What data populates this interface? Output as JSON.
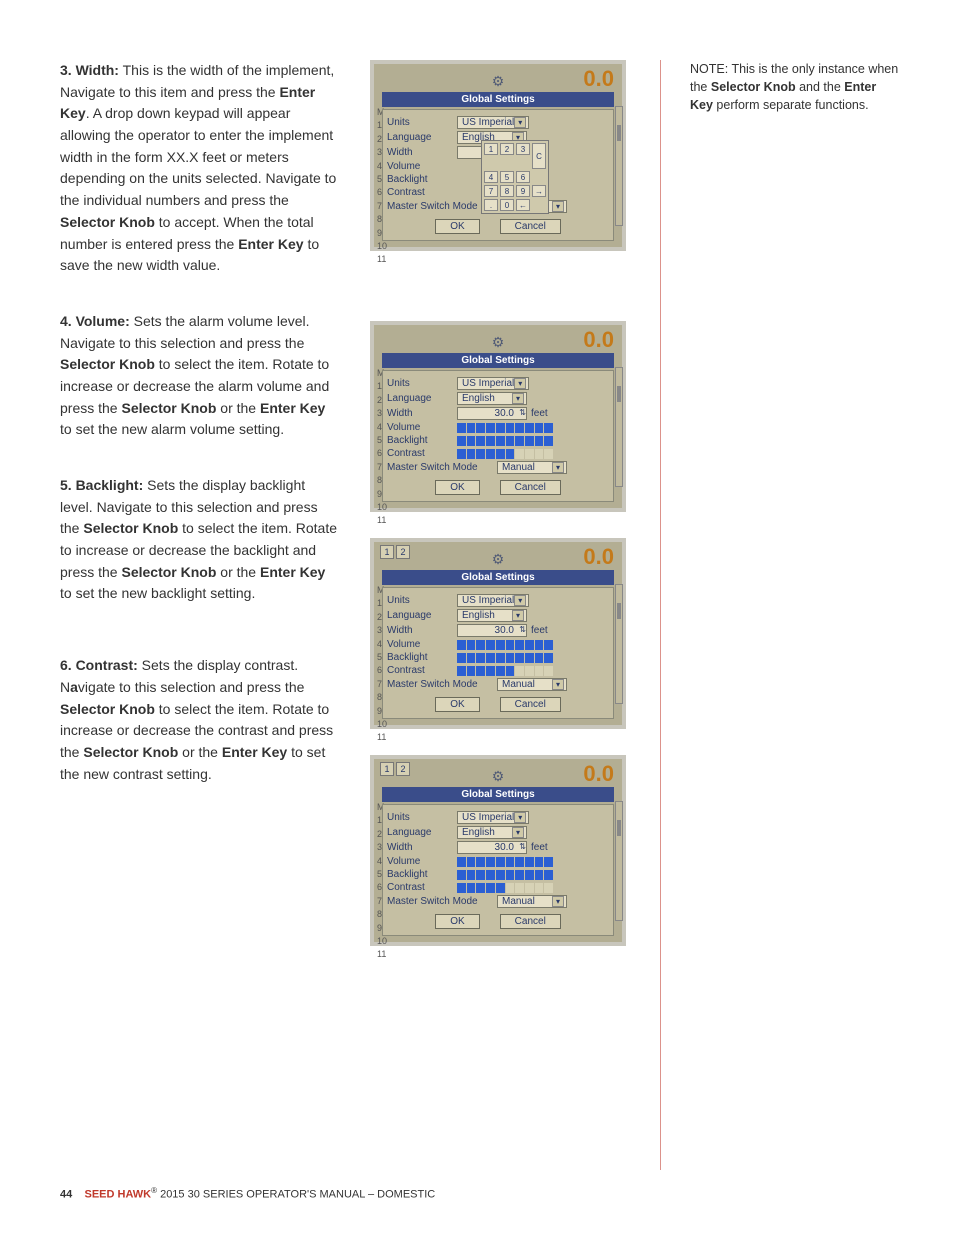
{
  "paragraphs": {
    "p3": {
      "lead": "3. Width:",
      "t1": " This is the width of the implement, Navigate to this item and press the ",
      "b1": "Enter Key",
      "t2": ". A drop down keypad will appear allowing the operator to enter the implement width in the form XX.X feet or meters depending on the units selected. Navigate to the individual numbers and press the ",
      "b2": "Selector Knob",
      "t3": " to accept. When the total number is entered press the ",
      "b3": "Enter Key",
      "t4": " to save the new width value."
    },
    "p4": {
      "lead": "4. Volume:",
      "t1": " Sets the alarm volume level.  Navigate to this selection and press the ",
      "b1": "Selector Knob",
      "t2": " to select the item. Rotate to increase or decrease the alarm volume and press the ",
      "b2": "Selector Knob",
      "t3": " or the ",
      "b3": "Enter Key",
      "t4": " to set the new alarm volume setting."
    },
    "p5": {
      "lead": "5. Backlight:",
      "t1": " Sets the display backlight level. Navigate to this selection and press the ",
      "b1": "Selector Knob",
      "t2": " to select the item. Rotate to increase or decrease the backlight and press the ",
      "b2": "Selector Knob",
      "t3": " or the ",
      "b3": "Enter Key",
      "t4": " to set the new backlight setting."
    },
    "p6": {
      "lead": "6. Contrast:",
      "t1": " Sets the display contrast. N",
      "b0": "a",
      "t1b": "vigate to this selection and press the ",
      "b1": "Selector Knob",
      "t2": " to select the item. Rotate to increase or decrease the contrast and press the ",
      "b2": "Selector Knob",
      "t3": " or the ",
      "b3": "Enter Key",
      "t4": " to set the new contrast setting."
    }
  },
  "sidebar": {
    "note_lead": "NOTE: This is the only instance when the ",
    "b1": "Selector Knob",
    "mid": " and the ",
    "b2": "Enter Key",
    "tail": " perform separate functions."
  },
  "screens": {
    "title": "Global Settings",
    "labels": {
      "units": "Units",
      "language": "Language",
      "width": "Width",
      "volume": "Volume",
      "backlight": "Backlight",
      "contrast": "Contrast",
      "msm": "Master Switch Mode"
    },
    "values": {
      "units": "US Imperial",
      "language": "English",
      "width": "30.0",
      "width_unit": "feet",
      "msm": "Manual"
    },
    "keypad": [
      "1",
      "2",
      "3",
      "4",
      "5",
      "6",
      "7",
      "8",
      "9",
      ".",
      "0",
      "←"
    ],
    "keypad_c": "C",
    "keypad_arrow": "→",
    "buttons": {
      "ok": "OK",
      "cancel": "Cancel"
    },
    "width_key": "30",
    "gear": "⚙",
    "zero": "0.0",
    "side_nums": [
      "M",
      "1.",
      "2.",
      "3.",
      "4.",
      "5.",
      "6.",
      "7.",
      "8.",
      "9.",
      "10",
      "11"
    ],
    "tabs": [
      "1",
      "2"
    ],
    "bars": {
      "volume_fill": 10,
      "backlight_fill": 10,
      "contrast_fill_s3": 6,
      "contrast_fill_s4": 5
    },
    "colors": {
      "bar_bg": "#3a4d8a",
      "bar_fill": "#2b5fd3",
      "panel_bg": "#b3ae93"
    }
  },
  "footer": {
    "page": "44",
    "brand": "SEED HAWK",
    "reg": "®",
    "rest": " 2015 30 SERIES OPERATOR'S MANUAL – DOMESTIC"
  }
}
